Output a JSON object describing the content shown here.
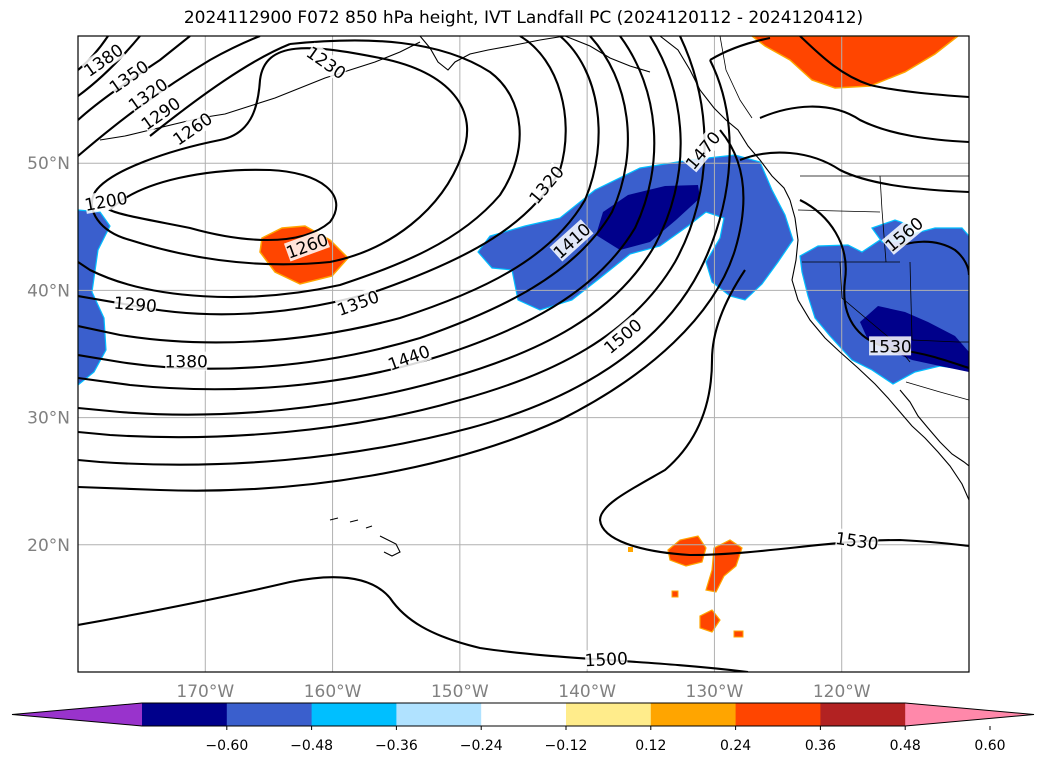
{
  "title": "2024112900 F072 850 hPa height, IVT Landfall PC (2024120112 - 2024120412)",
  "map": {
    "lon_range": [
      -180,
      -110
    ],
    "lat_range": [
      10,
      60
    ],
    "lon_ticks": [
      {
        "lon": -170,
        "label": "170°W"
      },
      {
        "lon": -160,
        "label": "160°W"
      },
      {
        "lon": -150,
        "label": "150°W"
      },
      {
        "lon": -140,
        "label": "140°W"
      },
      {
        "lon": -130,
        "label": "130°W"
      },
      {
        "lon": -120,
        "label": "120°W"
      }
    ],
    "lat_ticks": [
      {
        "lat": 20,
        "label": "20°N"
      },
      {
        "lat": 30,
        "label": "30°N"
      },
      {
        "lat": 40,
        "label": "40°N"
      },
      {
        "lat": 50,
        "label": "50°N"
      }
    ],
    "gridlines": true,
    "contour_labels": [
      {
        "text": "1380",
        "lon": -178,
        "lat": 58.1,
        "rot": -35
      },
      {
        "text": "1350",
        "lon": -176,
        "lat": 56.8,
        "rot": -35
      },
      {
        "text": "1320",
        "lon": -174.5,
        "lat": 55.4,
        "rot": -35
      },
      {
        "text": "1290",
        "lon": -173.5,
        "lat": 53.9,
        "rot": -35
      },
      {
        "text": "1260",
        "lon": -171,
        "lat": 52.7,
        "rot": -35
      },
      {
        "text": "1230",
        "lon": -160.5,
        "lat": 57.9,
        "rot": 35
      },
      {
        "text": "1200",
        "lon": -177.8,
        "lat": 47.0,
        "rot": -10
      },
      {
        "text": "1260",
        "lon": -162,
        "lat": 43.5,
        "rot": -20
      },
      {
        "text": "1290",
        "lon": -175.5,
        "lat": 38.9,
        "rot": 5
      },
      {
        "text": "1350",
        "lon": -158,
        "lat": 39.0,
        "rot": -20
      },
      {
        "text": "1380",
        "lon": -171.5,
        "lat": 34.4,
        "rot": 0
      },
      {
        "text": "1440",
        "lon": -154,
        "lat": 34.7,
        "rot": -20
      },
      {
        "text": "1320",
        "lon": -143.2,
        "lat": 48.3,
        "rot": -50
      },
      {
        "text": "1410",
        "lon": -141.2,
        "lat": 43.9,
        "rot": -42
      },
      {
        "text": "1470",
        "lon": -130.9,
        "lat": 51.0,
        "rot": -50
      },
      {
        "text": "1500",
        "lon": -137.2,
        "lat": 36.4,
        "rot": -40
      },
      {
        "text": "1560",
        "lon": -115.1,
        "lat": 44.4,
        "rot": -40
      },
      {
        "text": "1530",
        "lon": -116.2,
        "lat": 35.6,
        "rot": 0
      },
      {
        "text": "1530",
        "lon": -118.8,
        "lat": 20.3,
        "rot": 8
      },
      {
        "text": "1500",
        "lon": -138.5,
        "lat": 11.0,
        "rot": -3
      }
    ]
  },
  "colorbar": {
    "tick_labels": [
      "−0.60",
      "−0.48",
      "−0.36",
      "−0.24",
      "−0.12",
      "0.12",
      "0.24",
      "0.36",
      "0.48",
      "0.60"
    ],
    "colors": [
      "#9933cc",
      "#00008b",
      "#3a5fcd",
      "#00bfff",
      "#b0e2ff",
      "#ffffff",
      "#ffec8b",
      "#ffa500",
      "#ff4500",
      "#b22222",
      "#ff88aa"
    ]
  }
}
